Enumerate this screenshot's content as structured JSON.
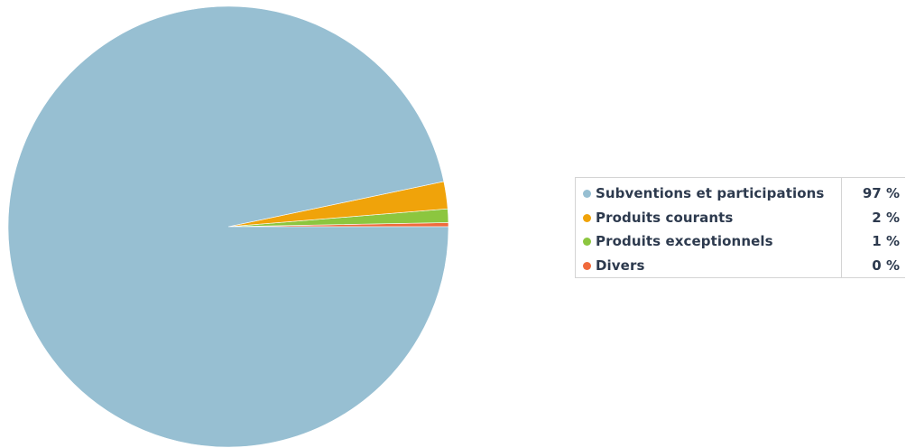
{
  "chart_data": {
    "type": "pie",
    "slices": [
      {
        "label": "Subventions et participations",
        "value": 97,
        "value_label": "97 %",
        "color": "#97bfd2"
      },
      {
        "label": "Produits courants",
        "value": 2,
        "value_label": "2 %",
        "color": "#f0a30a"
      },
      {
        "label": "Produits exceptionnels",
        "value": 1,
        "value_label": "1 %",
        "color": "#8cc63f"
      },
      {
        "label": "Divers",
        "value": 0.3,
        "value_label": "0 %",
        "color": "#f06a3c"
      }
    ],
    "legend_position": "right"
  }
}
